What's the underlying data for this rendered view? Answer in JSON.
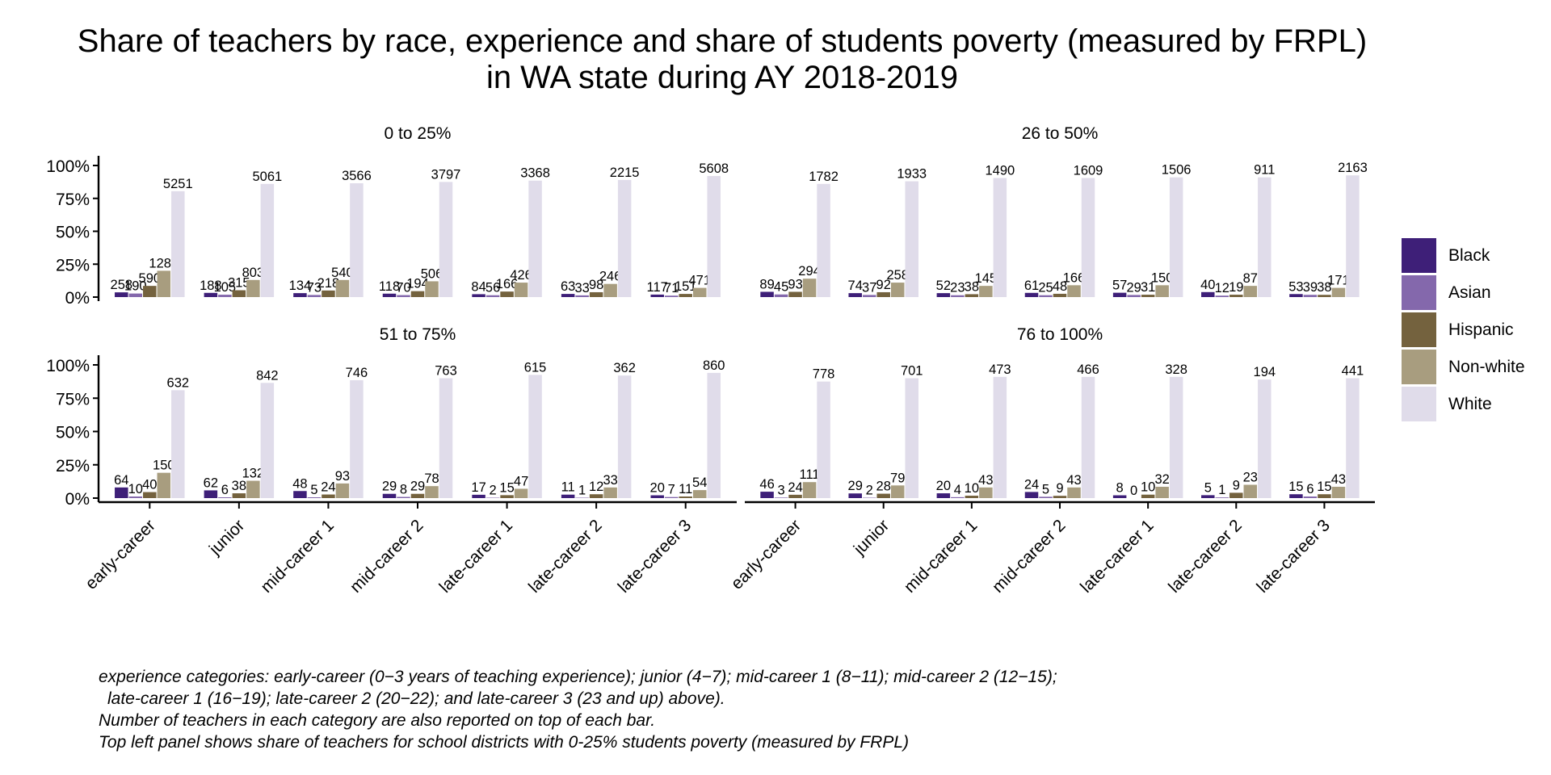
{
  "title_lines": [
    "Share of teachers by race, experience and share of students poverty (measured by FRPL)",
    "in WA state during AY 2018-2019"
  ],
  "caption_lines": [
    "experience categories: early-career (0−3 years of teaching experience); junior (4−7); mid-career 1 (8−11); mid-career 2 (12−15);",
    "late-career 1 (16−19); late-career 2 (20−22); and late-career 3 (23 and up) above).",
    "Number of teachers in each category are also reported on top of each bar.",
    "Top left panel shows share of teachers for school districts with 0-25% students poverty (measured by FRPL)"
  ],
  "legend": [
    {
      "label": "Black",
      "color": "#3e1f78"
    },
    {
      "label": "Asian",
      "color": "#8468ac"
    },
    {
      "label": "Hispanic",
      "color": "#74623e"
    },
    {
      "label": "Non-white",
      "color": "#a89d7f"
    },
    {
      "label": "White",
      "color": "#e0dcea"
    }
  ],
  "chart_data": {
    "type": "bar",
    "categories": [
      "early-career",
      "junior",
      "mid-career 1",
      "mid-career 2",
      "late-career 1",
      "late-career 2",
      "late-career 3"
    ],
    "series_names": [
      "Black",
      "Asian",
      "Hispanic",
      "Non-white",
      "White"
    ],
    "y_ticks": [
      "0%",
      "25%",
      "50%",
      "75%",
      "100%"
    ],
    "ylim": [
      0,
      1.05
    ],
    "grid": false,
    "legend_position": "right",
    "panels": [
      {
        "title": "0 to 25%",
        "counts": [
          [
            258,
            190,
            590,
            1286,
            5251
          ],
          [
            188,
            105,
            315,
            803,
            5061
          ],
          [
            134,
            73,
            218,
            540,
            3566
          ],
          [
            118,
            70,
            194,
            506,
            3797
          ],
          [
            84,
            56,
            166,
            426,
            3368
          ],
          [
            63,
            33,
            98,
            246,
            2215
          ],
          [
            117,
            71,
            151,
            471,
            5608
          ]
        ],
        "shares": [
          [
            0.036,
            0.027,
            0.085,
            0.2,
            0.805
          ],
          [
            0.032,
            0.018,
            0.052,
            0.13,
            0.86
          ],
          [
            0.03,
            0.016,
            0.05,
            0.13,
            0.865
          ],
          [
            0.026,
            0.015,
            0.045,
            0.12,
            0.875
          ],
          [
            0.022,
            0.014,
            0.042,
            0.11,
            0.885
          ],
          [
            0.024,
            0.013,
            0.037,
            0.1,
            0.89
          ],
          [
            0.019,
            0.011,
            0.024,
            0.07,
            0.92
          ]
        ]
      },
      {
        "title": "26 to 50%",
        "counts": [
          [
            89,
            45,
            93,
            294,
            1782
          ],
          [
            74,
            37,
            92,
            258,
            1933
          ],
          [
            52,
            23,
            38,
            145,
            1490
          ],
          [
            61,
            25,
            48,
            166,
            1609
          ],
          [
            57,
            29,
            31,
            150,
            1506
          ],
          [
            40,
            12,
            19,
            87,
            911
          ],
          [
            53,
            39,
            38,
            171,
            2163
          ]
        ],
        "shares": [
          [
            0.04,
            0.02,
            0.04,
            0.14,
            0.86
          ],
          [
            0.03,
            0.016,
            0.037,
            0.11,
            0.88
          ],
          [
            0.03,
            0.014,
            0.022,
            0.085,
            0.905
          ],
          [
            0.032,
            0.014,
            0.025,
            0.09,
            0.905
          ],
          [
            0.033,
            0.016,
            0.018,
            0.09,
            0.91
          ],
          [
            0.038,
            0.011,
            0.018,
            0.085,
            0.91
          ],
          [
            0.023,
            0.017,
            0.017,
            0.07,
            0.925
          ]
        ]
      },
      {
        "title": "51 to 75%",
        "counts": [
          [
            64,
            10,
            40,
            150,
            632
          ],
          [
            62,
            6,
            38,
            132,
            842
          ],
          [
            48,
            5,
            24,
            93,
            746
          ],
          [
            29,
            8,
            29,
            78,
            763
          ],
          [
            17,
            2,
            15,
            47,
            615
          ],
          [
            11,
            1,
            12,
            33,
            362
          ],
          [
            20,
            7,
            11,
            54,
            860
          ]
        ],
        "shares": [
          [
            0.08,
            0.012,
            0.045,
            0.19,
            0.81
          ],
          [
            0.058,
            0.006,
            0.036,
            0.13,
            0.865
          ],
          [
            0.053,
            0.006,
            0.027,
            0.11,
            0.885
          ],
          [
            0.032,
            0.009,
            0.032,
            0.09,
            0.9
          ],
          [
            0.025,
            0.003,
            0.022,
            0.07,
            0.925
          ],
          [
            0.026,
            0.003,
            0.029,
            0.08,
            0.92
          ],
          [
            0.021,
            0.008,
            0.012,
            0.06,
            0.94
          ]
        ]
      },
      {
        "title": "76 to 100%",
        "counts": [
          [
            46,
            3,
            24,
            111,
            778
          ],
          [
            29,
            2,
            28,
            79,
            701
          ],
          [
            20,
            4,
            10,
            43,
            473
          ],
          [
            24,
            5,
            9,
            43,
            466
          ],
          [
            8,
            0,
            10,
            32,
            328
          ],
          [
            5,
            1,
            9,
            23,
            194
          ],
          [
            15,
            6,
            15,
            43,
            441
          ]
        ],
        "shares": [
          [
            0.048,
            0.004,
            0.025,
            0.12,
            0.875
          ],
          [
            0.035,
            0.003,
            0.033,
            0.095,
            0.9
          ],
          [
            0.036,
            0.007,
            0.018,
            0.08,
            0.91
          ],
          [
            0.046,
            0.01,
            0.017,
            0.08,
            0.91
          ],
          [
            0.021,
            0.0,
            0.026,
            0.085,
            0.91
          ],
          [
            0.022,
            0.005,
            0.04,
            0.1,
            0.89
          ],
          [
            0.029,
            0.012,
            0.029,
            0.085,
            0.9
          ]
        ]
      }
    ]
  }
}
